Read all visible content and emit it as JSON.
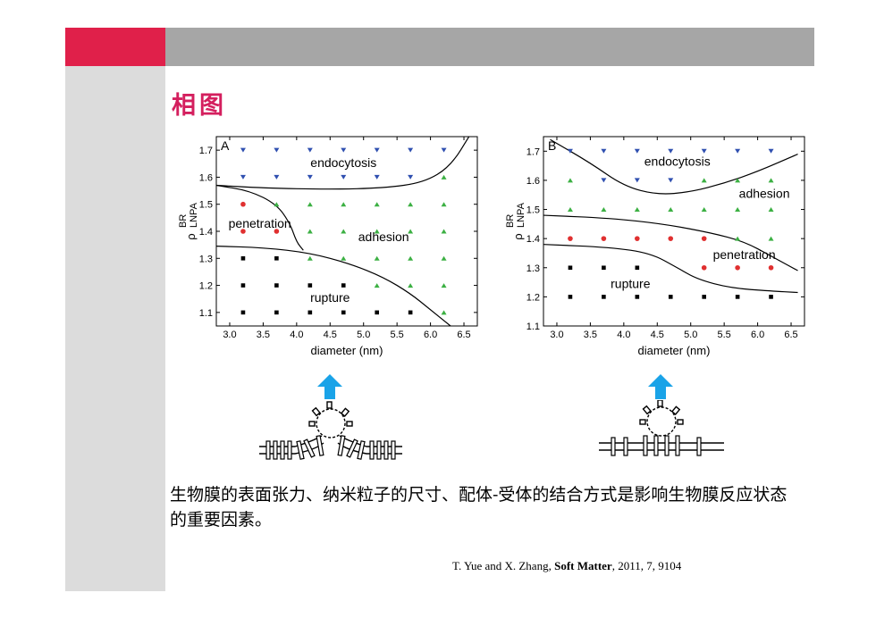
{
  "slide": {
    "title": "相图",
    "caption": "生物膜的表面张力、纳米粒子的尺寸、配体-受体的结合方式是影响生物膜反应状态的重要因素。",
    "reference": {
      "authors": "T. Yue and X. Zhang, ",
      "journal": "Soft Matter",
      "details": ", 2011, 7, 9104"
    }
  },
  "colors": {
    "accent_red": "#e0204a",
    "title_color": "#d41f5e",
    "header_gray": "#a6a6a6",
    "panel_gray": "#dcdcdc",
    "arrow_blue": "#1aa3e8",
    "marker_blue": "#3050b0",
    "marker_green": "#3cb043",
    "marker_red": "#e03030",
    "marker_black": "#000000"
  },
  "chart_data": [
    {
      "type": "scatter",
      "panel_label": "A",
      "xlabel": "diameter (nm)",
      "ylabel_main": "ρ",
      "ylabel_sup": "BR",
      "ylabel_sub": "LNPA",
      "xlim": [
        2.8,
        6.7
      ],
      "ylim": [
        1.05,
        1.75
      ],
      "xticks": [
        "3.0",
        "3.5",
        "4.0",
        "4.5",
        "5.0",
        "5.5",
        "6.0",
        "6.5"
      ],
      "yticks": [
        "1.1",
        "1.2",
        "1.3",
        "1.4",
        "1.5",
        "1.6",
        "1.7"
      ],
      "regions": [
        {
          "label": "endocytosis",
          "x": 4.7,
          "y": 1.655
        },
        {
          "label": "penetration",
          "x": 3.45,
          "y": 1.43
        },
        {
          "label": "adhesion",
          "x": 5.3,
          "y": 1.38
        },
        {
          "label": "rupture",
          "x": 4.5,
          "y": 1.155
        }
      ],
      "series": [
        {
          "marker": "triangle-down",
          "color": "blue",
          "points": [
            [
              3.2,
              1.7
            ],
            [
              3.7,
              1.7
            ],
            [
              4.2,
              1.7
            ],
            [
              4.7,
              1.7
            ],
            [
              5.2,
              1.7
            ],
            [
              5.7,
              1.7
            ],
            [
              6.2,
              1.7
            ],
            [
              3.2,
              1.6
            ],
            [
              3.7,
              1.6
            ],
            [
              4.2,
              1.6
            ],
            [
              4.7,
              1.6
            ],
            [
              5.2,
              1.6
            ],
            [
              5.7,
              1.6
            ]
          ]
        },
        {
          "marker": "triangle-up",
          "color": "green",
          "points": [
            [
              6.2,
              1.6
            ],
            [
              3.7,
              1.5
            ],
            [
              4.2,
              1.5
            ],
            [
              4.7,
              1.5
            ],
            [
              5.2,
              1.5
            ],
            [
              5.7,
              1.5
            ],
            [
              6.2,
              1.5
            ],
            [
              4.2,
              1.4
            ],
            [
              4.7,
              1.4
            ],
            [
              5.2,
              1.4
            ],
            [
              5.7,
              1.4
            ],
            [
              6.2,
              1.4
            ],
            [
              4.2,
              1.3
            ],
            [
              4.7,
              1.3
            ],
            [
              5.2,
              1.3
            ],
            [
              5.7,
              1.3
            ],
            [
              6.2,
              1.3
            ],
            [
              5.2,
              1.2
            ],
            [
              5.7,
              1.2
            ],
            [
              6.2,
              1.2
            ],
            [
              6.2,
              1.1
            ]
          ]
        },
        {
          "marker": "circle",
          "color": "red",
          "points": [
            [
              3.2,
              1.5
            ],
            [
              3.2,
              1.4
            ],
            [
              3.7,
              1.4
            ]
          ]
        },
        {
          "marker": "square",
          "color": "black",
          "points": [
            [
              3.2,
              1.3
            ],
            [
              3.7,
              1.3
            ],
            [
              3.2,
              1.2
            ],
            [
              3.7,
              1.2
            ],
            [
              4.2,
              1.2
            ],
            [
              4.7,
              1.2
            ],
            [
              3.2,
              1.1
            ],
            [
              3.7,
              1.1
            ],
            [
              4.2,
              1.1
            ],
            [
              4.7,
              1.1
            ],
            [
              5.2,
              1.1
            ],
            [
              5.7,
              1.1
            ]
          ]
        }
      ],
      "boundaries": [
        [
          [
            2.8,
            1.57
          ],
          [
            3.5,
            1.56
          ],
          [
            4.5,
            1.555
          ],
          [
            5.3,
            1.56
          ],
          [
            5.9,
            1.58
          ],
          [
            6.3,
            1.64
          ],
          [
            6.6,
            1.76
          ]
        ],
        [
          [
            2.8,
            1.57
          ],
          [
            3.3,
            1.55
          ],
          [
            3.7,
            1.5
          ],
          [
            3.9,
            1.43
          ],
          [
            4.0,
            1.36
          ],
          [
            4.1,
            1.33
          ]
        ],
        [
          [
            2.8,
            1.345
          ],
          [
            3.5,
            1.34
          ],
          [
            4.2,
            1.32
          ],
          [
            4.8,
            1.28
          ],
          [
            5.3,
            1.23
          ],
          [
            5.7,
            1.17
          ],
          [
            6.0,
            1.11
          ],
          [
            6.3,
            1.05
          ]
        ]
      ]
    },
    {
      "type": "scatter",
      "panel_label": "B",
      "xlabel": "diameter (nm)",
      "ylabel_main": "ρ",
      "ylabel_sup": "BR",
      "ylabel_sub": "LNPA",
      "xlim": [
        2.8,
        6.7
      ],
      "ylim": [
        1.1,
        1.75
      ],
      "xticks": [
        "3.0",
        "3.5",
        "4.0",
        "4.5",
        "5.0",
        "5.5",
        "6.0",
        "6.5"
      ],
      "yticks": [
        "1.1",
        "1.2",
        "1.3",
        "1.4",
        "1.5",
        "1.6",
        "1.7"
      ],
      "regions": [
        {
          "label": "endocytosis",
          "x": 4.8,
          "y": 1.665
        },
        {
          "label": "adhesion",
          "x": 6.1,
          "y": 1.555
        },
        {
          "label": "penetration",
          "x": 5.8,
          "y": 1.345
        },
        {
          "label": "rupture",
          "x": 4.1,
          "y": 1.245
        }
      ],
      "series": [
        {
          "marker": "triangle-down",
          "color": "blue",
          "points": [
            [
              3.2,
              1.7
            ],
            [
              3.7,
              1.7
            ],
            [
              4.2,
              1.7
            ],
            [
              4.7,
              1.7
            ],
            [
              5.2,
              1.7
            ],
            [
              5.7,
              1.7
            ],
            [
              6.2,
              1.7
            ],
            [
              3.7,
              1.6
            ],
            [
              4.2,
              1.6
            ],
            [
              4.7,
              1.6
            ]
          ]
        },
        {
          "marker": "triangle-up",
          "color": "green",
          "points": [
            [
              3.2,
              1.6
            ],
            [
              5.2,
              1.6
            ],
            [
              5.7,
              1.6
            ],
            [
              6.2,
              1.6
            ],
            [
              3.2,
              1.5
            ],
            [
              3.7,
              1.5
            ],
            [
              4.2,
              1.5
            ],
            [
              4.7,
              1.5
            ],
            [
              5.2,
              1.5
            ],
            [
              5.7,
              1.5
            ],
            [
              6.2,
              1.5
            ],
            [
              5.7,
              1.4
            ],
            [
              6.2,
              1.4
            ]
          ]
        },
        {
          "marker": "circle",
          "color": "red",
          "points": [
            [
              3.2,
              1.4
            ],
            [
              3.7,
              1.4
            ],
            [
              4.2,
              1.4
            ],
            [
              4.7,
              1.4
            ],
            [
              5.2,
              1.4
            ],
            [
              5.2,
              1.3
            ],
            [
              5.7,
              1.3
            ],
            [
              6.2,
              1.3
            ]
          ]
        },
        {
          "marker": "square",
          "color": "black",
          "points": [
            [
              3.2,
              1.3
            ],
            [
              3.7,
              1.3
            ],
            [
              4.2,
              1.3
            ],
            [
              3.2,
              1.2
            ],
            [
              3.7,
              1.2
            ],
            [
              4.2,
              1.2
            ],
            [
              4.7,
              1.2
            ],
            [
              5.2,
              1.2
            ],
            [
              5.7,
              1.2
            ],
            [
              6.2,
              1.2
            ]
          ]
        }
      ],
      "boundaries": [
        [
          [
            2.9,
            1.74
          ],
          [
            3.5,
            1.66
          ],
          [
            4.0,
            1.58
          ],
          [
            4.5,
            1.55
          ],
          [
            5.0,
            1.56
          ],
          [
            5.5,
            1.59
          ],
          [
            6.0,
            1.63
          ],
          [
            6.6,
            1.69
          ]
        ],
        [
          [
            2.8,
            1.48
          ],
          [
            3.8,
            1.47
          ],
          [
            4.6,
            1.45
          ],
          [
            5.3,
            1.42
          ],
          [
            5.8,
            1.39
          ],
          [
            6.2,
            1.34
          ],
          [
            6.6,
            1.29
          ]
        ],
        [
          [
            2.8,
            1.38
          ],
          [
            3.8,
            1.37
          ],
          [
            4.4,
            1.35
          ],
          [
            4.8,
            1.3
          ],
          [
            5.1,
            1.26
          ],
          [
            5.6,
            1.23
          ],
          [
            6.2,
            1.22
          ],
          [
            6.6,
            1.215
          ]
        ]
      ]
    }
  ]
}
